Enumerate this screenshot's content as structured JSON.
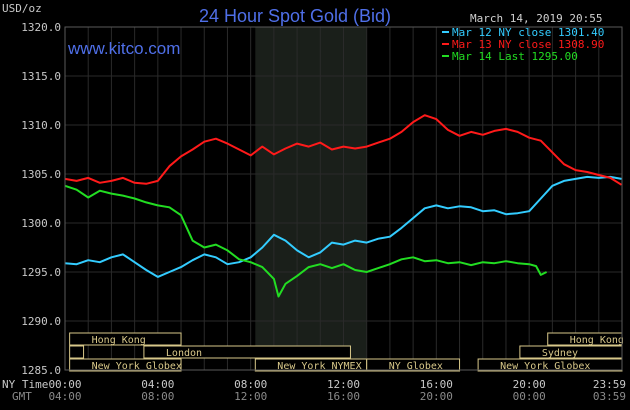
{
  "chart_data": {
    "type": "line",
    "title": "24 Hour Spot Gold (Bid)",
    "watermark": "www.kitco.com",
    "date_label": "March 14, 2019 20:55",
    "ylabel": "USD/oz",
    "ylim": [
      1285.0,
      1320.0
    ],
    "yticks": [
      "1320.0",
      "1315.0",
      "1310.0",
      "1305.0",
      "1300.0",
      "1295.0",
      "1290.0",
      "1285.0"
    ],
    "ytick_values": [
      1320,
      1315,
      1310,
      1305,
      1300,
      1295,
      1290,
      1285
    ],
    "xlim": [
      0,
      24
    ],
    "x_axis_label_ny": "NY Time",
    "x_axis_label_gmt": "GMT",
    "xticks_ny": [
      "00:00",
      "04:00",
      "08:00",
      "12:00",
      "16:00",
      "20:00",
      "23:59"
    ],
    "xticks_gmt": [
      "04:00",
      "08:00",
      "12:00",
      "16:00",
      "20:00",
      "00:00",
      "03:59"
    ],
    "xtick_values": [
      0,
      4,
      8,
      12,
      16,
      20,
      23.98
    ],
    "shaded_region": [
      8.2,
      13.0
    ],
    "grid": true,
    "legend_position": "top-right",
    "colors": {
      "background": "#000000",
      "grid": "#2a2a2a",
      "shade": "#1a1f1a",
      "title": "#4f6fe8",
      "market_box": "#d8c88a"
    },
    "series": [
      {
        "name": "Mar 12 NY close 1301.40",
        "color": "#33ccff",
        "x": [
          0.0,
          0.5,
          1.0,
          1.5,
          2.0,
          2.5,
          3.0,
          3.5,
          4.0,
          4.5,
          5.0,
          5.5,
          6.0,
          6.5,
          7.0,
          7.5,
          8.0,
          8.5,
          9.0,
          9.5,
          10.0,
          10.5,
          11.0,
          11.5,
          12.0,
          12.5,
          13.0,
          13.5,
          14.0,
          14.5,
          15.0,
          15.5,
          16.0,
          16.5,
          17.0,
          17.5,
          18.0,
          18.5,
          19.0,
          19.5,
          20.0,
          20.5,
          21.0,
          21.5,
          22.0,
          22.5,
          23.0,
          23.5,
          23.98
        ],
        "values": [
          1295.9,
          1295.8,
          1296.2,
          1296.0,
          1296.5,
          1296.8,
          1296.0,
          1295.2,
          1294.5,
          1295.0,
          1295.5,
          1296.2,
          1296.8,
          1296.5,
          1295.8,
          1296.0,
          1296.5,
          1297.5,
          1298.8,
          1298.2,
          1297.2,
          1296.5,
          1297.0,
          1298.0,
          1297.8,
          1298.2,
          1298.0,
          1298.4,
          1298.6,
          1299.5,
          1300.5,
          1301.5,
          1301.8,
          1301.5,
          1301.7,
          1301.6,
          1301.2,
          1301.3,
          1300.9,
          1301.0,
          1301.2,
          1302.5,
          1303.8,
          1304.3,
          1304.5,
          1304.7,
          1304.6,
          1304.7,
          1304.5
        ]
      },
      {
        "name": "Mar 13 NY close 1308.90",
        "color": "#ff1a1a",
        "x": [
          0.0,
          0.5,
          1.0,
          1.5,
          2.0,
          2.5,
          3.0,
          3.5,
          4.0,
          4.5,
          5.0,
          5.5,
          6.0,
          6.5,
          7.0,
          7.5,
          8.0,
          8.5,
          9.0,
          9.5,
          10.0,
          10.5,
          11.0,
          11.5,
          12.0,
          12.5,
          13.0,
          13.5,
          14.0,
          14.5,
          15.0,
          15.5,
          16.0,
          16.5,
          17.0,
          17.5,
          18.0,
          18.5,
          19.0,
          19.5,
          20.0,
          20.5,
          21.0,
          21.5,
          22.0,
          22.5,
          23.0,
          23.5,
          23.98
        ],
        "values": [
          1304.5,
          1304.3,
          1304.6,
          1304.1,
          1304.3,
          1304.6,
          1304.1,
          1304.0,
          1304.3,
          1305.8,
          1306.8,
          1307.5,
          1308.3,
          1308.6,
          1308.1,
          1307.5,
          1306.9,
          1307.8,
          1307.0,
          1307.6,
          1308.1,
          1307.8,
          1308.2,
          1307.5,
          1307.8,
          1307.6,
          1307.8,
          1308.2,
          1308.6,
          1309.3,
          1310.3,
          1311.0,
          1310.6,
          1309.5,
          1308.9,
          1309.3,
          1309.0,
          1309.4,
          1309.6,
          1309.3,
          1308.7,
          1308.4,
          1307.2,
          1306.0,
          1305.4,
          1305.2,
          1304.9,
          1304.6,
          1303.9
        ]
      },
      {
        "name": "Mar 14 Last 1295.00",
        "color": "#22dd22",
        "x": [
          0.0,
          0.5,
          1.0,
          1.5,
          2.0,
          2.5,
          3.0,
          3.5,
          4.0,
          4.5,
          5.0,
          5.5,
          6.0,
          6.5,
          7.0,
          7.5,
          8.0,
          8.5,
          9.0,
          9.2,
          9.5,
          10.0,
          10.5,
          11.0,
          11.5,
          12.0,
          12.5,
          13.0,
          13.5,
          14.0,
          14.5,
          15.0,
          15.5,
          16.0,
          16.5,
          17.0,
          17.5,
          18.0,
          18.5,
          19.0,
          19.5,
          20.0,
          20.3,
          20.5,
          20.75
        ],
        "values": [
          1303.8,
          1303.4,
          1302.6,
          1303.3,
          1303.0,
          1302.8,
          1302.5,
          1302.1,
          1301.8,
          1301.6,
          1300.8,
          1298.2,
          1297.5,
          1297.8,
          1297.2,
          1296.3,
          1296.0,
          1295.5,
          1294.3,
          1292.5,
          1293.8,
          1294.6,
          1295.5,
          1295.8,
          1295.4,
          1295.8,
          1295.2,
          1295.0,
          1295.4,
          1295.8,
          1296.3,
          1296.5,
          1296.1,
          1296.2,
          1295.9,
          1296.0,
          1295.7,
          1296.0,
          1295.9,
          1296.1,
          1295.9,
          1295.8,
          1295.6,
          1294.7,
          1295.0
        ]
      }
    ],
    "market_rows": [
      [
        {
          "label": "Hong Kong",
          "start": 0.2,
          "end": 5.0,
          "align": "left"
        },
        {
          "label": "Hong Kong",
          "start": 20.8,
          "end": 24.0,
          "align": "left"
        }
      ],
      [
        {
          "label": "London",
          "start": 0.2,
          "end": 0.8,
          "align": "none"
        },
        {
          "label": "London",
          "start": 3.4,
          "end": 12.3,
          "align": "left"
        },
        {
          "label": "Sydney",
          "start": 19.6,
          "end": 24.0,
          "align": "left"
        }
      ],
      [
        {
          "label": "New York Globex",
          "start": 0.2,
          "end": 5.0,
          "align": "left"
        },
        {
          "label": "New York NYMEX",
          "start": 8.2,
          "end": 13.0,
          "align": "left"
        },
        {
          "label": "NY Globex",
          "start": 13.0,
          "end": 17.0,
          "align": "left"
        },
        {
          "label": "New York Globex",
          "start": 17.8,
          "end": 24.0,
          "align": "left"
        }
      ]
    ]
  }
}
